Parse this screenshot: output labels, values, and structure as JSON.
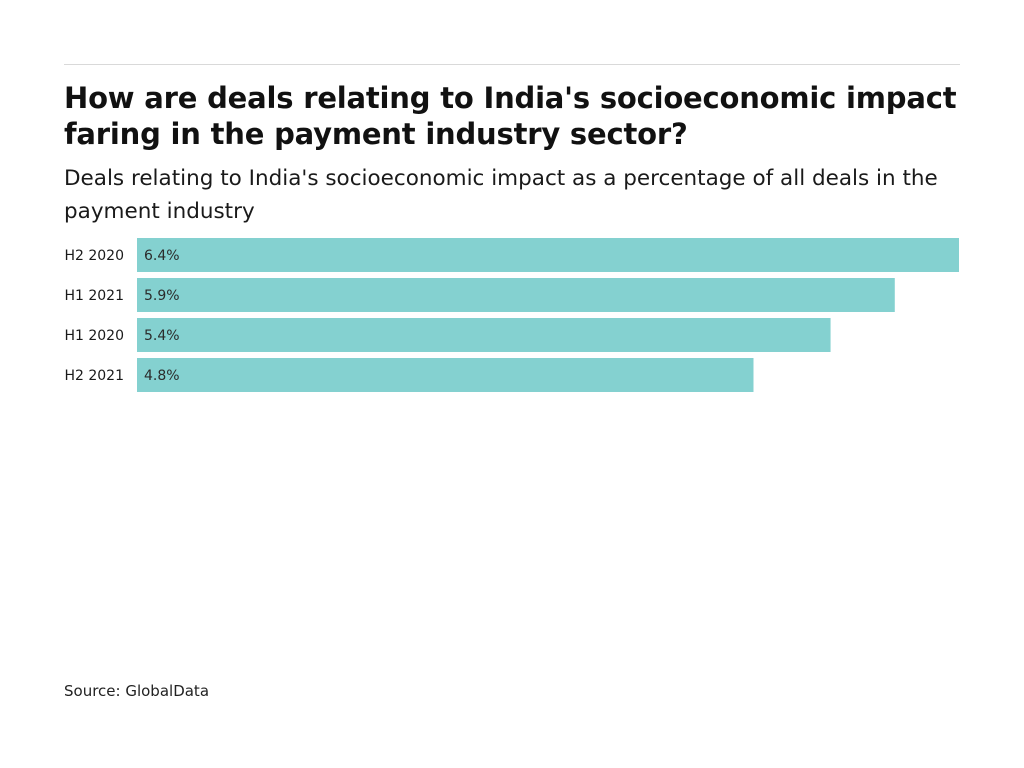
{
  "header": {
    "title": "How are deals relating to India's socioeconomic impact faring in the payment industry sector?",
    "subtitle": "Deals relating to India's socioeconomic impact as a percentage of all deals in the payment industry"
  },
  "footer": {
    "source": "Source: GlobalData"
  },
  "colors": {
    "bar": "#84d1d0",
    "text": "#1a1a1a",
    "rule": "#d9d9d9"
  },
  "chart_data": {
    "type": "bar",
    "orientation": "horizontal",
    "categories": [
      "H2 2020",
      "H1 2021",
      "H1 2020",
      "H2 2021"
    ],
    "values": [
      6.4,
      5.9,
      5.4,
      4.8
    ],
    "value_labels": [
      "6.4%",
      "5.9%",
      "5.4%",
      "4.8%"
    ],
    "unit": "%",
    "xlim": [
      0,
      6.4
    ],
    "grid": false,
    "legend": "none"
  }
}
